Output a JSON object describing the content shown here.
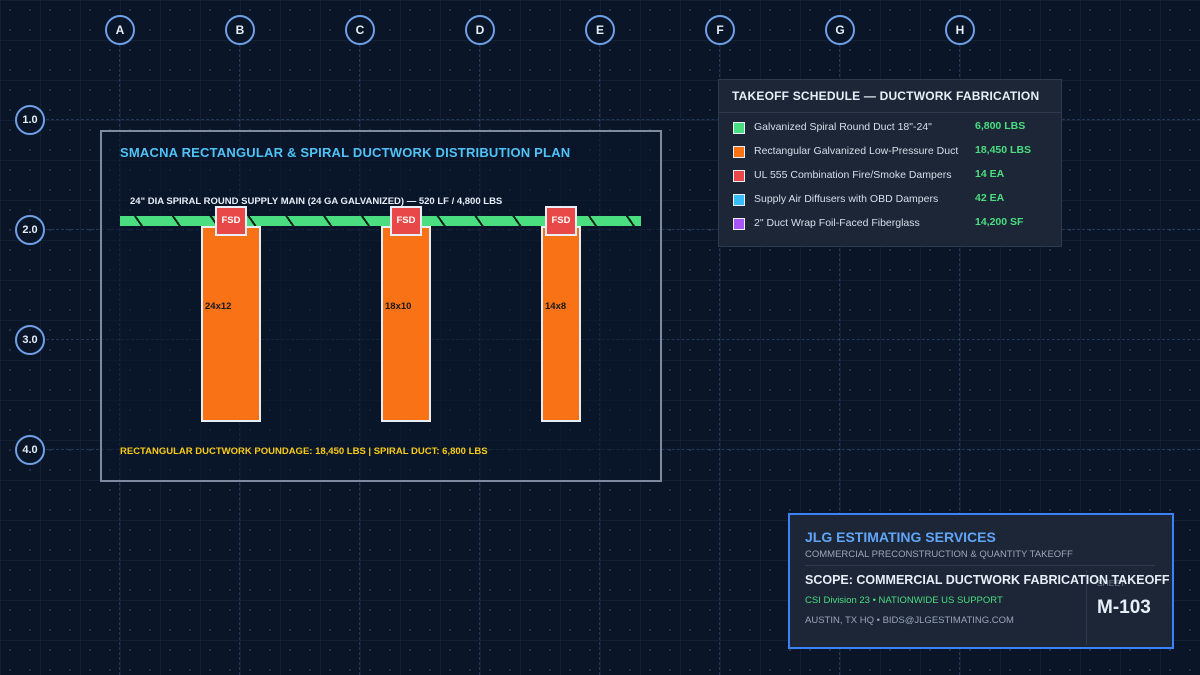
{
  "grid": {
    "columns": [
      "A",
      "B",
      "C",
      "D",
      "E",
      "F",
      "G",
      "H"
    ],
    "rows": [
      "1.0",
      "2.0",
      "3.0",
      "4.0"
    ]
  },
  "plan": {
    "title": "SMACNA RECTANGULAR & SPIRAL DUCTWORK DISTRIBUTION PLAN",
    "main_label": "24\" DIA SPIRAL ROUND SUPPLY MAIN (24 GA GALVANIZED) — 520 LF / 4,800 LBS",
    "branches": [
      {
        "size": "24x12",
        "damper": "FSD"
      },
      {
        "size": "18x10",
        "damper": "FSD"
      },
      {
        "size": "14x8",
        "damper": "FSD"
      }
    ],
    "summary": "RECTANGULAR DUCTWORK POUNDAGE: 18,450 LBS | SPIRAL DUCT: 6,800 LBS"
  },
  "schedule": {
    "title": "TAKEOFF SCHEDULE — DUCTWORK FABRICATION",
    "items": [
      {
        "label": "Galvanized Spiral Round Duct 18\"-24\"",
        "qty": "6,800 LBS",
        "color": "#4ade80"
      },
      {
        "label": "Rectangular Galvanized Low-Pressure Duct",
        "qty": "18,450 LBS",
        "color": "#f97316"
      },
      {
        "label": "UL 555 Combination Fire/Smoke Dampers",
        "qty": "14 EA",
        "color": "#e84848"
      },
      {
        "label": "Supply Air Diffusers with OBD Dampers",
        "qty": "42 EA",
        "color": "#38bdf8"
      },
      {
        "label": "2\" Duct Wrap Foil-Faced Fiberglass",
        "qty": "14,200 SF",
        "color": "#a855f7"
      }
    ]
  },
  "title_block": {
    "firm": "JLG ESTIMATING SERVICES",
    "tagline": "COMMERCIAL PRECONSTRUCTION & QUANTITY TAKEOFF",
    "scope": "SCOPE: COMMERCIAL DUCTWORK FABRICATION TAKEOFF",
    "csi": "CSI Division 23 • NATIONWIDE US SUPPORT",
    "address": "AUSTIN, TX HQ • BIDS@JLGESTIMATING.COM",
    "sheet_label": "SHEET",
    "sheet_number": "M-103"
  },
  "colors": {
    "background": "#0a1628",
    "spiral_duct": "#4ade80",
    "rect_duct": "#f97316",
    "damper": "#e84848",
    "diffuser": "#38bdf8",
    "insulation": "#a855f7",
    "accent": "#3b82f6",
    "title_accent": "#4fc3f7",
    "summary_accent": "#facc15"
  }
}
